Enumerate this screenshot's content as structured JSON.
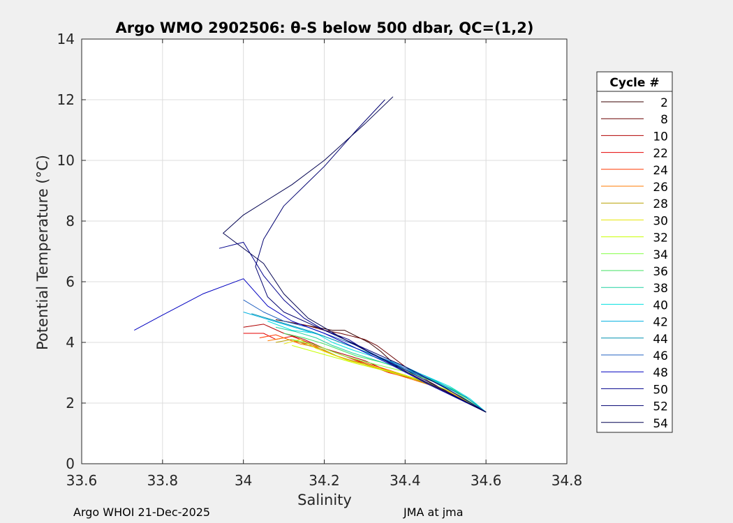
{
  "chart_data": {
    "type": "line",
    "title": "Argo WMO 2902506: θ-S below 500 dbar,  QC=(1,2)",
    "xlabel": "Salinity",
    "ylabel": "Potential Temperature (°C)",
    "xlim": [
      33.6,
      34.8
    ],
    "ylim": [
      0,
      14
    ],
    "xticks": [
      "33.6",
      "33.8",
      "34",
      "34.2",
      "34.4",
      "34.6",
      "34.8"
    ],
    "yticks": [
      "0",
      "2",
      "4",
      "6",
      "8",
      "10",
      "12",
      "14"
    ],
    "grid": true,
    "legend": {
      "title": "Cycle #",
      "placement": "outside-right",
      "entries": [
        "2",
        "8",
        "10",
        "22",
        "24",
        "26",
        "28",
        "30",
        "32",
        "34",
        "36",
        "38",
        "40",
        "42",
        "44",
        "46",
        "48",
        "50",
        "52",
        "54"
      ]
    },
    "series": [
      {
        "name": "2",
        "color": "#3a0000",
        "x": [
          34.08,
          34.14,
          34.18,
          34.22,
          34.25,
          34.28,
          34.31,
          34.34,
          34.38,
          34.45,
          34.6
        ],
        "y": [
          4.75,
          4.6,
          4.5,
          4.4,
          4.4,
          4.2,
          4.0,
          3.7,
          3.2,
          2.7,
          1.7
        ]
      },
      {
        "name": "8",
        "color": "#6a0000",
        "x": [
          34.1,
          34.16,
          34.2,
          34.24,
          34.27,
          34.3,
          34.33,
          34.36,
          34.4,
          34.46,
          34.6
        ],
        "y": [
          4.7,
          4.55,
          4.4,
          4.3,
          4.2,
          4.1,
          3.9,
          3.6,
          3.2,
          2.7,
          1.7
        ]
      },
      {
        "name": "10",
        "color": "#b00000",
        "x": [
          34.0,
          34.05,
          34.1,
          34.15,
          34.2,
          34.25,
          34.3,
          34.35,
          34.4,
          34.47,
          34.6
        ],
        "y": [
          4.5,
          4.6,
          4.3,
          4.1,
          3.8,
          3.6,
          3.4,
          3.1,
          2.9,
          2.6,
          1.7
        ]
      },
      {
        "name": "22",
        "color": "#e40000",
        "x": [
          34.0,
          34.05,
          34.08,
          34.12,
          34.18,
          34.24,
          34.3,
          34.36,
          34.42,
          34.48,
          34.6
        ],
        "y": [
          4.3,
          4.3,
          4.1,
          4.2,
          3.9,
          3.6,
          3.3,
          3.0,
          2.8,
          2.5,
          1.7
        ]
      },
      {
        "name": "24",
        "color": "#ff3a00",
        "x": [
          34.04,
          34.08,
          34.12,
          34.16,
          34.2,
          34.26,
          34.32,
          34.38,
          34.44,
          34.5,
          34.6
        ],
        "y": [
          4.15,
          4.25,
          4.05,
          3.95,
          3.8,
          3.5,
          3.25,
          3.0,
          2.75,
          2.45,
          1.7
        ]
      },
      {
        "name": "26",
        "color": "#ff7a00",
        "x": [
          34.06,
          34.1,
          34.14,
          34.18,
          34.22,
          34.28,
          34.34,
          34.4,
          34.46,
          34.52,
          34.6
        ],
        "y": [
          4.05,
          4.15,
          3.95,
          3.85,
          3.6,
          3.35,
          3.1,
          2.85,
          2.6,
          2.3,
          1.7
        ]
      },
      {
        "name": "28",
        "color": "#b8a000",
        "x": [
          34.08,
          34.12,
          34.16,
          34.2,
          34.24,
          34.3,
          34.36,
          34.42,
          34.48,
          34.54,
          34.6
        ],
        "y": [
          4.0,
          4.1,
          3.9,
          3.75,
          3.5,
          3.3,
          3.05,
          2.8,
          2.5,
          2.1,
          1.7
        ]
      },
      {
        "name": "30",
        "color": "#e6e600",
        "x": [
          34.1,
          34.14,
          34.18,
          34.22,
          34.26,
          34.32,
          34.38,
          34.44,
          34.5,
          34.55,
          34.6
        ],
        "y": [
          3.95,
          4.1,
          3.8,
          3.6,
          3.4,
          3.2,
          3.0,
          2.75,
          2.45,
          2.05,
          1.7
        ]
      },
      {
        "name": "32",
        "color": "#c8ff00",
        "x": [
          34.12,
          34.16,
          34.2,
          34.24,
          34.28,
          34.34,
          34.4,
          34.46,
          34.52,
          34.56,
          34.6
        ],
        "y": [
          3.9,
          3.75,
          3.6,
          3.45,
          3.3,
          3.1,
          2.9,
          2.65,
          2.35,
          2.0,
          1.7
        ]
      },
      {
        "name": "34",
        "color": "#80ff40",
        "x": [
          34.12,
          34.17,
          34.21,
          34.25,
          34.29,
          34.35,
          34.41,
          34.47,
          34.52,
          34.56,
          34.6
        ],
        "y": [
          4.1,
          3.95,
          3.75,
          3.55,
          3.4,
          3.2,
          3.0,
          2.7,
          2.4,
          2.05,
          1.7
        ]
      },
      {
        "name": "36",
        "color": "#40e060",
        "x": [
          34.1,
          34.15,
          34.2,
          34.24,
          34.28,
          34.34,
          34.4,
          34.46,
          34.52,
          34.56,
          34.6
        ],
        "y": [
          4.3,
          4.15,
          3.95,
          3.75,
          3.55,
          3.35,
          3.1,
          2.8,
          2.45,
          2.1,
          1.7
        ]
      },
      {
        "name": "38",
        "color": "#20d0a0",
        "x": [
          34.08,
          34.13,
          34.18,
          34.22,
          34.27,
          34.33,
          34.39,
          34.45,
          34.51,
          34.56,
          34.6
        ],
        "y": [
          4.5,
          4.35,
          4.15,
          3.9,
          3.65,
          3.4,
          3.15,
          2.85,
          2.5,
          2.1,
          1.7
        ]
      },
      {
        "name": "40",
        "color": "#00e0e0",
        "x": [
          34.06,
          34.12,
          34.18,
          34.22,
          34.27,
          34.33,
          34.39,
          34.45,
          34.51,
          34.56,
          34.6
        ],
        "y": [
          4.7,
          4.4,
          4.3,
          4.0,
          3.75,
          3.5,
          3.2,
          2.9,
          2.55,
          2.15,
          1.7
        ]
      },
      {
        "name": "42",
        "color": "#00b0e0",
        "x": [
          34.0,
          34.05,
          34.1,
          34.15,
          34.2,
          34.26,
          34.32,
          34.4,
          34.48,
          34.55,
          34.6
        ],
        "y": [
          5.0,
          4.8,
          4.6,
          4.4,
          4.2,
          3.9,
          3.6,
          3.2,
          2.7,
          2.2,
          1.7
        ]
      },
      {
        "name": "44",
        "color": "#0090b0",
        "x": [
          34.02,
          34.07,
          34.12,
          34.17,
          34.22,
          34.28,
          34.34,
          34.4,
          34.48,
          34.55,
          34.6
        ],
        "y": [
          4.95,
          4.75,
          4.55,
          4.35,
          4.1,
          3.8,
          3.5,
          3.1,
          2.65,
          2.2,
          1.7
        ]
      },
      {
        "name": "46",
        "color": "#2060c0",
        "x": [
          34.0,
          34.05,
          34.1,
          34.16,
          34.22,
          34.28,
          34.34,
          34.4,
          34.47,
          34.54,
          34.6
        ],
        "y": [
          5.4,
          5.0,
          4.7,
          4.5,
          4.2,
          3.9,
          3.5,
          3.15,
          2.7,
          2.2,
          1.7
        ]
      },
      {
        "name": "48",
        "color": "#0000c0",
        "x": [
          33.73,
          33.8,
          33.9,
          34.0,
          34.06,
          34.12,
          34.2,
          34.28,
          34.36,
          34.46,
          34.6
        ],
        "y": [
          4.4,
          4.9,
          5.6,
          6.1,
          5.2,
          4.7,
          4.3,
          3.8,
          3.3,
          2.6,
          1.7
        ]
      },
      {
        "name": "50",
        "color": "#00008b",
        "x": [
          33.94,
          34.0,
          34.05,
          34.1,
          34.15,
          34.2,
          34.26,
          34.32,
          34.4,
          34.5,
          34.6
        ],
        "y": [
          7.1,
          7.3,
          6.2,
          5.4,
          4.8,
          4.4,
          4.1,
          3.6,
          3.1,
          2.4,
          1.7
        ]
      },
      {
        "name": "52",
        "color": "#000070",
        "x": [
          34.35,
          34.28,
          34.2,
          34.1,
          34.05,
          34.03,
          34.06,
          34.1,
          34.2,
          34.3,
          34.4,
          34.5,
          34.6
        ],
        "y": [
          12.0,
          11.0,
          9.8,
          8.5,
          7.4,
          6.5,
          5.5,
          5.0,
          4.4,
          3.8,
          3.2,
          2.5,
          1.7
        ]
      },
      {
        "name": "54",
        "color": "#000050",
        "x": [
          34.37,
          34.3,
          34.2,
          34.12,
          34.0,
          33.95,
          34.05,
          34.1,
          34.16,
          34.25,
          34.35,
          34.45,
          34.6
        ],
        "y": [
          12.1,
          11.2,
          10.0,
          9.2,
          8.2,
          7.6,
          6.6,
          5.6,
          4.8,
          4.1,
          3.4,
          2.7,
          1.7
        ]
      }
    ]
  },
  "footer": {
    "left": "Argo WHOI 21-Dec-2025",
    "right": "JMA at jma"
  }
}
